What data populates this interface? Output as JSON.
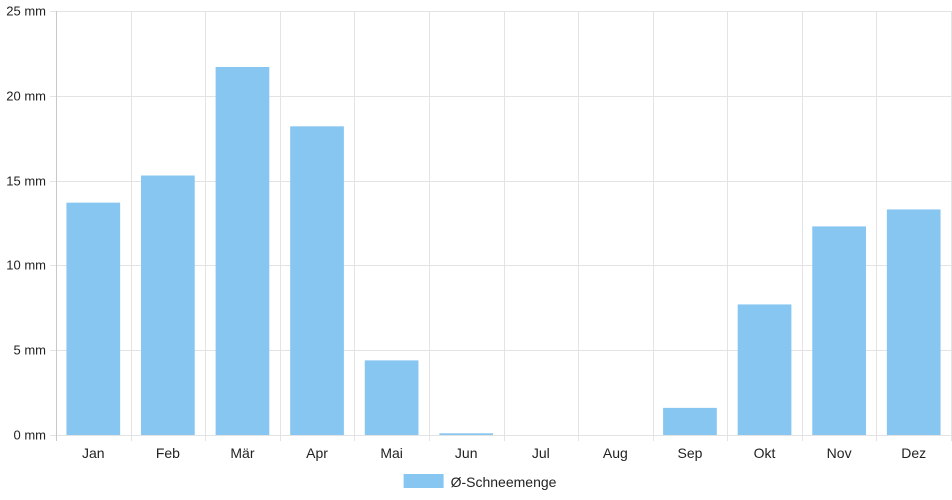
{
  "chart_data": {
    "type": "bar",
    "categories": [
      "Jan",
      "Feb",
      "Mär",
      "Apr",
      "Mai",
      "Jun",
      "Jul",
      "Aug",
      "Sep",
      "Okt",
      "Nov",
      "Dez"
    ],
    "series": [
      {
        "name": "Ø-Schneemenge",
        "values": [
          13.7,
          15.3,
          21.7,
          18.2,
          4.4,
          0.1,
          0,
          0,
          1.6,
          7.7,
          12.3,
          13.3
        ]
      }
    ],
    "ylim": [
      0,
      25
    ],
    "y_ticks": [
      0,
      5,
      10,
      15,
      20,
      25
    ],
    "y_tick_suffix": " mm",
    "grid": true,
    "legend_position": "bottom",
    "colors": {
      "bar": "#88c6f2",
      "grid": "#e3e3e3",
      "axis": "#c8c8c8"
    }
  }
}
